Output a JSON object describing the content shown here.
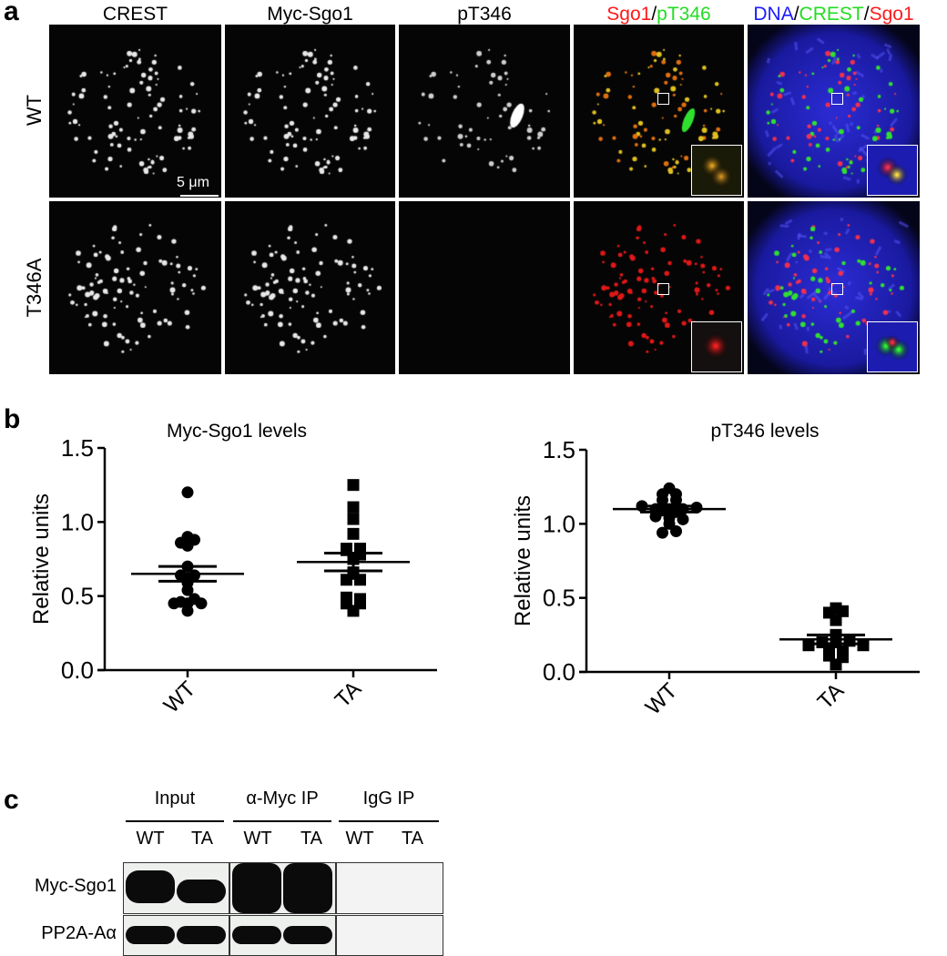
{
  "panel_a": {
    "label": "a",
    "columns": [
      {
        "parts": [
          {
            "text": "CREST",
            "color": "#000000"
          }
        ]
      },
      {
        "parts": [
          {
            "text": "Myc-Sgo1",
            "color": "#000000"
          }
        ]
      },
      {
        "parts": [
          {
            "text": "pT346",
            "color": "#000000"
          }
        ]
      },
      {
        "parts": [
          {
            "text": "Sgo1",
            "color": "#ff1a1a"
          },
          {
            "text": "/",
            "color": "#000000"
          },
          {
            "text": "pT346",
            "color": "#22dd22"
          }
        ]
      },
      {
        "parts": [
          {
            "text": "DNA",
            "color": "#1a1aff"
          },
          {
            "text": "/",
            "color": "#000000"
          },
          {
            "text": "CREST",
            "color": "#22dd22"
          },
          {
            "text": "/",
            "color": "#000000"
          },
          {
            "text": "Sgo1",
            "color": "#ff1a1a"
          }
        ]
      }
    ],
    "rows": [
      "WT",
      "T346A"
    ],
    "scale_bar": "5 μm"
  },
  "panel_b": {
    "label": "b"
  },
  "panel_c": {
    "label": "c",
    "groups": [
      "Input",
      "α-Myc IP",
      "IgG IP"
    ],
    "lanes": [
      "WT",
      "TA",
      "WT",
      "TA",
      "WT",
      "TA"
    ],
    "blots": [
      "Myc-Sgo1",
      "PP2A-Aα"
    ]
  },
  "chart_data": [
    {
      "type": "scatter",
      "title": "Myc-Sgo1 levels",
      "ylabel": "Relative units",
      "ylim": [
        0,
        1.5
      ],
      "yticks": [
        "0.0",
        "0.5",
        "1.0",
        "1.5"
      ],
      "categories": [
        "WT",
        "TA"
      ],
      "series": [
        {
          "category": "WT",
          "marker": "circle",
          "values": [
            1.2,
            0.9,
            0.86,
            0.84,
            0.88,
            0.7,
            0.64,
            0.64,
            0.59,
            0.54,
            0.46,
            0.45,
            0.45,
            0.45,
            0.48,
            0.4
          ],
          "mean": 0.65,
          "sem": 0.05
        },
        {
          "category": "TA",
          "marker": "square",
          "values": [
            1.25,
            1.1,
            1.02,
            0.92,
            0.82,
            0.81,
            0.75,
            0.78,
            0.82,
            0.66,
            0.61,
            0.61,
            0.65,
            0.49,
            0.45,
            0.45,
            0.48,
            0.4
          ],
          "mean": 0.73,
          "sem": 0.06
        }
      ]
    },
    {
      "type": "scatter",
      "title": "pT346 levels",
      "ylabel": "Relative units",
      "ylim": [
        0,
        1.5
      ],
      "yticks": [
        "0.0",
        "0.5",
        "1.0",
        "1.5"
      ],
      "categories": [
        "WT",
        "TA"
      ],
      "series": [
        {
          "category": "WT",
          "marker": "circle",
          "values": [
            1.24,
            1.2,
            1.2,
            1.16,
            1.16,
            1.12,
            1.1,
            1.1,
            1.1,
            1.11,
            1.05,
            1.04,
            1.03,
            1.0,
            0.94,
            0.95,
            1.09,
            1.08
          ],
          "mean": 1.1,
          "sem": 0.02
        },
        {
          "category": "TA",
          "marker": "square",
          "values": [
            0.43,
            0.4,
            0.41,
            0.35,
            0.18,
            0.16,
            0.25,
            0.2,
            0.2,
            0.21,
            0.11,
            0.1,
            0.14,
            0.05,
            0.18
          ],
          "mean": 0.22,
          "sem": 0.03
        }
      ]
    }
  ]
}
